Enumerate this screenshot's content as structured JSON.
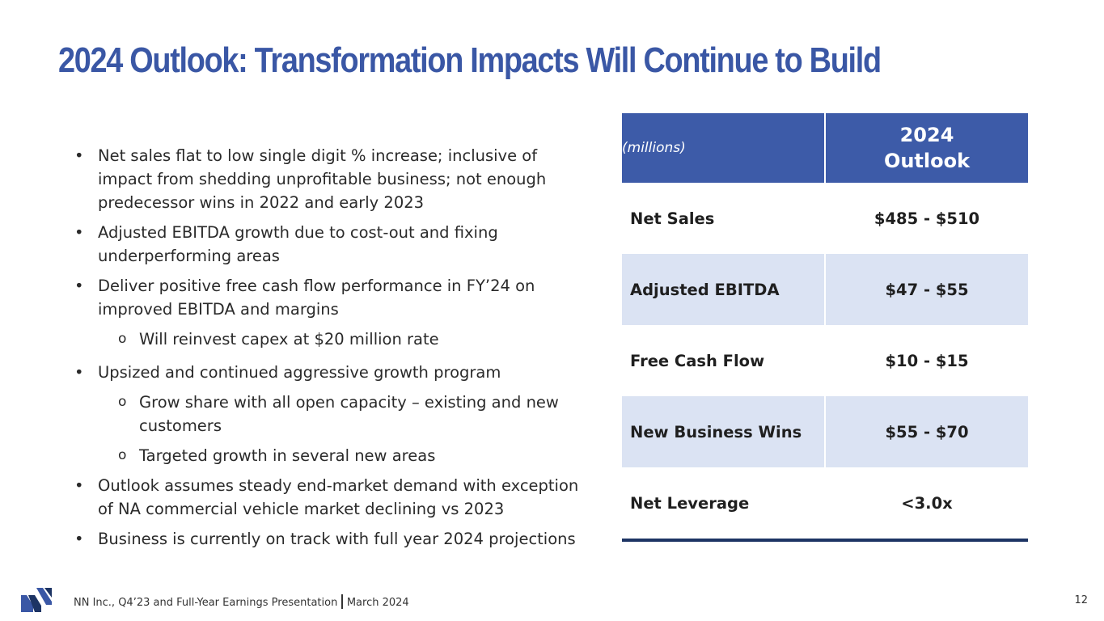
{
  "title": "2024 Outlook: Transformation Impacts Will Continue to Build",
  "bullets": {
    "b1": "Net sales flat to low single digit % increase; inclusive of impact from shedding unprofitable business; not enough predecessor wins in 2022 and early 2023",
    "b2": "Adjusted EBITDA growth due to cost-out and fixing underperforming areas",
    "b3": "Deliver positive free cash flow performance in FY’24 on improved EBITDA and margins",
    "b3_sub1": "Will reinvest capex at $20 million rate",
    "b4": "Upsized and continued aggressive growth program",
    "b4_sub1": "Grow share with all open capacity – existing and new customers",
    "b4_sub2": "Targeted growth in several new areas",
    "b5": "Outlook assumes steady end-market demand with exception of NA commercial vehicle market declining vs 2023",
    "b6": "Business is currently on track with full year 2024 projections",
    "bullet_glyph": "•",
    "sub_glyph": "o"
  },
  "table": {
    "unit_header": "(millions)",
    "col_header_line1": "2024",
    "col_header_line2": "Outlook",
    "rows": [
      {
        "label": "Net Sales",
        "value": "$485 - $510"
      },
      {
        "label": "Adjusted EBITDA",
        "value": "$47 - $55"
      },
      {
        "label": "Free Cash Flow",
        "value": "$10 - $15"
      },
      {
        "label": "New Business Wins",
        "value": "$55 - $70"
      },
      {
        "label": "Net Leverage",
        "value": "<3.0x"
      }
    ]
  },
  "footer": {
    "left_text": "NN Inc., Q4’23 and Full-Year Earnings Presentation",
    "right_text": "March 2024",
    "page_number": "12"
  },
  "colors": {
    "brand_blue": "#3a57a5",
    "header_fill": "#3d5ba8",
    "row_shade": "#dbe3f3",
    "rule": "#1d3464"
  }
}
